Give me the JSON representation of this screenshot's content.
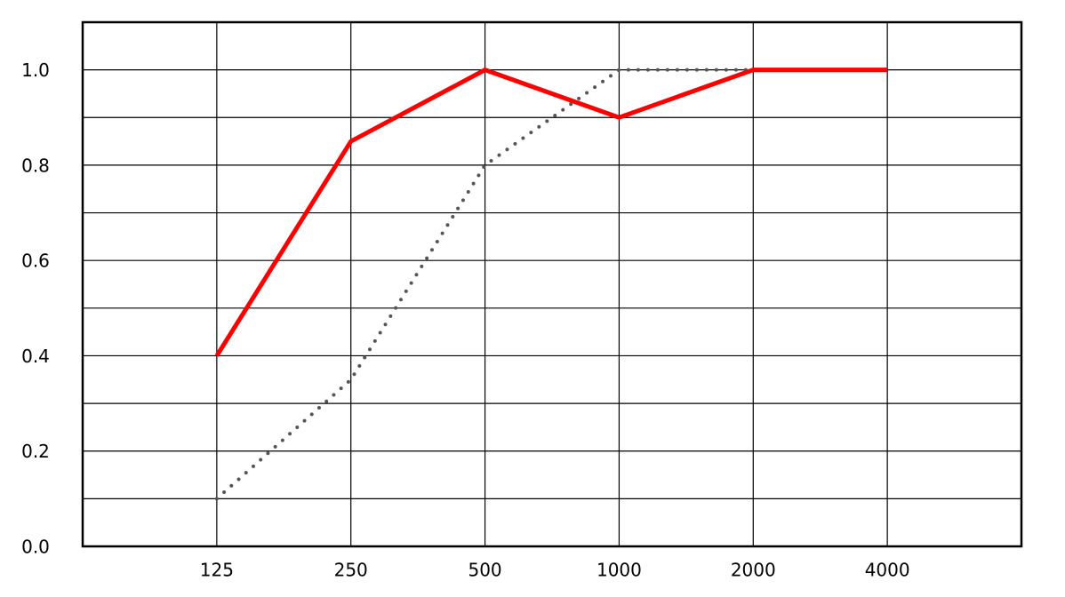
{
  "chart_data": {
    "type": "line",
    "categories": [
      "125",
      "250",
      "500",
      "1000",
      "2000",
      "4000"
    ],
    "series": [
      {
        "color": "#ff0000",
        "style": "solid",
        "values": [
          0.4,
          0.85,
          1.0,
          0.9,
          1.0,
          1.0
        ]
      },
      {
        "color": "#555555",
        "style": "dotted",
        "values": [
          0.1,
          0.35,
          0.8,
          1.0,
          1.0,
          null
        ]
      }
    ],
    "ylim": [
      0,
      1.1
    ],
    "yticks": [
      {
        "value": 0,
        "label": "0.0"
      },
      0.2,
      0.4,
      0.6,
      0.8,
      {
        "value": 1,
        "label": "1.0"
      }
    ],
    "minor_yticks": [
      0.1,
      0.3,
      0.5,
      0.7,
      0.9
    ],
    "grid": true
  }
}
